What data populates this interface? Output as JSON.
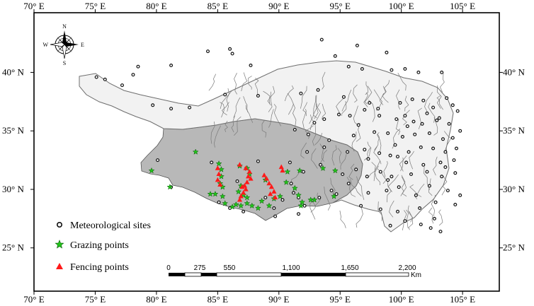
{
  "map": {
    "lon_range": [
      70,
      108
    ],
    "lat_range": [
      21.3,
      45.1
    ],
    "x_ticks": [
      "70° E",
      "75° E",
      "80° E",
      "85° E",
      "90° E",
      "95° E",
      "100° E",
      "105° E"
    ],
    "y_ticks": [
      "25° N",
      "30° N",
      "35° N",
      "40° N"
    ],
    "colors": {
      "plateau": "#b8b8b8",
      "rivers": "#7a7a7a",
      "met_site": "#111111",
      "grazing": "#22c51a",
      "fencing": "#ff1a1a"
    }
  },
  "compass": {
    "n": "N",
    "s": "S",
    "e": "E",
    "w": "W"
  },
  "legend": {
    "meteorological": "Meteorological sites",
    "grazing": "Grazing points",
    "fencing": "Fencing points"
  },
  "scale_bar": {
    "labels": [
      "0",
      "275",
      "550",
      "1,100",
      "1,650",
      "2,200"
    ],
    "unit": "Km"
  },
  "points": {
    "meteorological": [
      [
        93.5,
        42.8
      ],
      [
        84.2,
        41.8
      ],
      [
        86,
        42
      ],
      [
        86.2,
        41.6
      ],
      [
        96.4,
        42.3
      ],
      [
        94.6,
        41.4
      ],
      [
        98.8,
        41.7
      ],
      [
        95.7,
        40.5
      ],
      [
        96.8,
        40.3
      ],
      [
        99.2,
        40.2
      ],
      [
        100.3,
        40.3
      ],
      [
        101.4,
        40
      ],
      [
        103.3,
        40
      ],
      [
        87.7,
        40.6
      ],
      [
        81.2,
        40.6
      ],
      [
        78.5,
        40.5
      ],
      [
        78.1,
        39.8
      ],
      [
        75.1,
        39.6
      ],
      [
        75.8,
        39.4
      ],
      [
        77.2,
        38.9
      ],
      [
        79.7,
        37.2
      ],
      [
        82.7,
        37
      ],
      [
        81.2,
        36.9
      ],
      [
        85.6,
        38.1
      ],
      [
        88.3,
        38
      ],
      [
        91.8,
        38.2
      ],
      [
        93.2,
        38.5
      ],
      [
        95.3,
        37.9
      ],
      [
        97.4,
        37.4
      ],
      [
        98.1,
        36.9
      ],
      [
        99.9,
        37.4
      ],
      [
        100.9,
        37.7
      ],
      [
        101.8,
        37.6
      ],
      [
        102.6,
        37
      ],
      [
        103.7,
        37.8
      ],
      [
        104.2,
        37.2
      ],
      [
        104.6,
        36.7
      ],
      [
        103.1,
        36.1
      ],
      [
        102.1,
        36.5
      ],
      [
        101.7,
        35.6
      ],
      [
        101,
        35.8
      ],
      [
        100.3,
        36.3
      ],
      [
        99.6,
        36
      ],
      [
        98.2,
        36.3
      ],
      [
        97,
        36.8
      ],
      [
        95.8,
        36.3
      ],
      [
        94.9,
        36.4
      ],
      [
        93.7,
        36
      ],
      [
        92.9,
        35.7
      ],
      [
        91.3,
        35.1
      ],
      [
        96.5,
        35.5
      ],
      [
        97.8,
        34.9
      ],
      [
        98.9,
        34.8
      ],
      [
        100.1,
        34.5
      ],
      [
        101.1,
        34.7
      ],
      [
        102.3,
        34.8
      ],
      [
        103.4,
        34.3
      ],
      [
        104.2,
        34.4
      ],
      [
        104.8,
        35
      ],
      [
        103.9,
        35.6
      ],
      [
        99.5,
        33.8
      ],
      [
        100.6,
        33.2
      ],
      [
        101.6,
        33.6
      ],
      [
        102.6,
        33.5
      ],
      [
        103.6,
        33.2
      ],
      [
        104.5,
        33.5
      ],
      [
        94.1,
        34.2
      ],
      [
        92.4,
        34.7
      ],
      [
        92.3,
        33.2
      ],
      [
        93.7,
        33.6
      ],
      [
        95.6,
        33.2
      ],
      [
        97,
        33.4
      ],
      [
        98.2,
        33.1
      ],
      [
        99.1,
        32.9
      ],
      [
        100.4,
        32.3
      ],
      [
        101.8,
        32.1
      ],
      [
        103.2,
        32.3
      ],
      [
        104.3,
        32.5
      ],
      [
        96.3,
        31.7
      ],
      [
        97.2,
        31.1
      ],
      [
        98.3,
        31.5
      ],
      [
        99.2,
        31.1
      ],
      [
        100.8,
        31.3
      ],
      [
        102.1,
        31.5
      ],
      [
        103.3,
        31.1
      ],
      [
        104.4,
        31.4
      ],
      [
        95.7,
        30.5
      ],
      [
        97.3,
        29.7
      ],
      [
        98.8,
        29.9
      ],
      [
        99.8,
        30.2
      ],
      [
        101.2,
        29.5
      ],
      [
        102.3,
        30.3
      ],
      [
        103.8,
        29.9
      ],
      [
        104.8,
        29.5
      ],
      [
        96.7,
        28.6
      ],
      [
        98.3,
        28.3
      ],
      [
        99.7,
        28.1
      ],
      [
        101.5,
        28.4
      ],
      [
        102.8,
        28.9
      ],
      [
        104.4,
        28.7
      ],
      [
        100.3,
        27.3
      ],
      [
        101.6,
        27
      ],
      [
        102.4,
        26.7
      ],
      [
        103.2,
        26.4
      ],
      [
        99.1,
        26.9
      ],
      [
        94.7,
        29.6
      ],
      [
        93.3,
        29.3
      ],
      [
        91.6,
        29.3
      ],
      [
        91.2,
        29.7
      ],
      [
        91,
        30.5
      ],
      [
        90.3,
        29.1
      ],
      [
        88.9,
        29.3
      ],
      [
        89.6,
        28.4
      ],
      [
        92.1,
        28.6
      ],
      [
        91.6,
        27.9
      ],
      [
        94.3,
        29.9
      ],
      [
        92,
        31.5
      ],
      [
        90.9,
        32.3
      ],
      [
        93.4,
        32.1
      ],
      [
        88.3,
        32.4
      ],
      [
        86.6,
        30.7
      ],
      [
        89.7,
        27.7
      ],
      [
        84.5,
        32.3
      ],
      [
        80.1,
        32.5
      ],
      [
        81.2,
        30.2
      ],
      [
        86,
        28.4
      ],
      [
        87.1,
        28.1
      ],
      [
        85.1,
        28.9
      ],
      [
        98.9,
        30.8
      ],
      [
        99.7,
        32.8
      ],
      [
        97.3,
        32.6
      ],
      [
        95.2,
        31.3
      ],
      [
        96.1,
        34.6
      ],
      [
        100.5,
        35.4
      ],
      [
        102.9,
        35.9
      ],
      [
        103.6,
        31.9
      ],
      [
        102.7,
        27.5
      ]
    ],
    "grazing": [
      [
        79.6,
        31.6
      ],
      [
        81.1,
        30.2
      ],
      [
        83.2,
        33.2
      ],
      [
        84.4,
        29.6
      ],
      [
        84.8,
        29.6
      ],
      [
        85.4,
        29.4
      ],
      [
        85.6,
        28.8
      ],
      [
        86.2,
        28.5
      ],
      [
        86.5,
        28.7
      ],
      [
        86.9,
        28.6
      ],
      [
        87.4,
        28.8
      ],
      [
        87.8,
        28.6
      ],
      [
        88.3,
        28.4
      ],
      [
        88.6,
        29
      ],
      [
        89.2,
        28.6
      ],
      [
        85.1,
        32.2
      ],
      [
        85.3,
        31.7
      ],
      [
        85.3,
        31.1
      ],
      [
        85.2,
        30.5
      ],
      [
        85.4,
        30.2
      ],
      [
        86.8,
        32
      ],
      [
        87.4,
        31.8
      ],
      [
        87.6,
        31.3
      ],
      [
        86.9,
        30.3
      ],
      [
        86.7,
        29.8
      ],
      [
        87.1,
        29.5
      ],
      [
        87.4,
        29.3
      ],
      [
        89.6,
        29.2
      ],
      [
        90.1,
        29.4
      ],
      [
        90.6,
        30.6
      ],
      [
        90.7,
        31.5
      ],
      [
        91.7,
        31.6
      ],
      [
        91.3,
        30.1
      ],
      [
        91.6,
        29.5
      ],
      [
        91.9,
        28.9
      ],
      [
        92.6,
        29.1
      ],
      [
        92.9,
        29.1
      ],
      [
        93.6,
        31.8
      ],
      [
        94.6,
        31.6
      ],
      [
        94.5,
        29.4
      ],
      [
        91.8,
        28.6
      ],
      [
        88.9,
        30.8
      ]
    ],
    "fencing": [
      [
        87.3,
        31.8
      ],
      [
        87.6,
        31.5
      ],
      [
        87.5,
        31.1
      ],
      [
        87.7,
        30.9
      ],
      [
        87.4,
        30.6
      ],
      [
        87.2,
        30.3
      ],
      [
        87,
        30.2
      ],
      [
        87.3,
        30
      ],
      [
        87.1,
        29.7
      ],
      [
        86.9,
        29.4
      ],
      [
        86.8,
        29.1
      ],
      [
        88.8,
        31.2
      ],
      [
        89,
        30.9
      ],
      [
        89.2,
        30.5
      ],
      [
        89.4,
        30.2
      ],
      [
        89.6,
        29.8
      ],
      [
        89.3,
        29.6
      ],
      [
        89.7,
        29.3
      ],
      [
        90.2,
        31.9
      ],
      [
        90.3,
        31.6
      ],
      [
        85,
        31.8
      ],
      [
        85.1,
        31.3
      ],
      [
        85,
        30.8
      ],
      [
        85.2,
        30.4
      ],
      [
        86.8,
        32.1
      ]
    ]
  }
}
